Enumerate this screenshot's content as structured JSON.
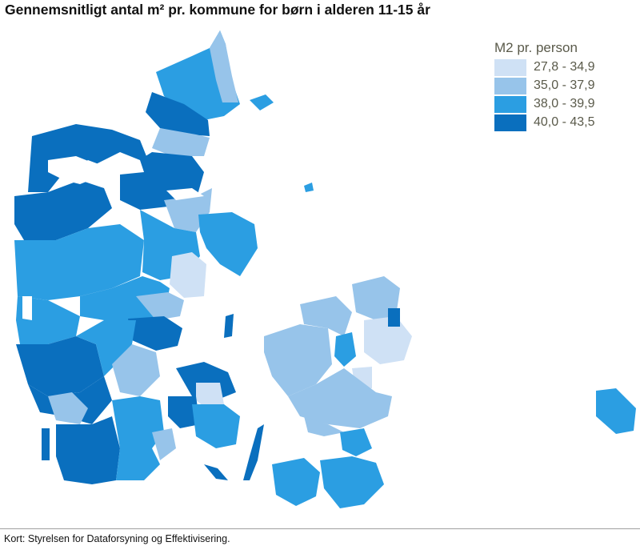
{
  "title": "Gennemsnitligt antal m² pr. kommune for børn i alderen 11-15 år",
  "legend": {
    "title": "M2 pr. person",
    "items": [
      {
        "label": "27,8 - 34,9",
        "color": "#cfe1f5"
      },
      {
        "label": "35,0 - 37,9",
        "color": "#97c4ea"
      },
      {
        "label": "38,0 - 39,9",
        "color": "#2b9ee2"
      },
      {
        "label": "40,0 - 43,5",
        "color": "#0a6fbe"
      }
    ]
  },
  "source": "Kort: Styrelsen for Dataforsyning og Effektivisering."
}
